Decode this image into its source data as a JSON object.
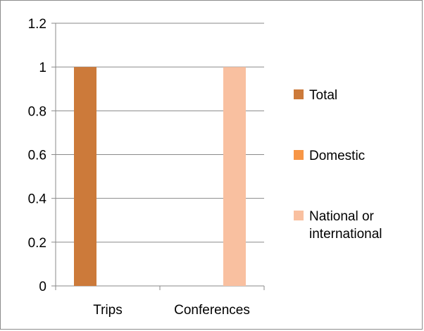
{
  "chart_data": {
    "type": "bar",
    "categories": [
      "Trips",
      "Conferences"
    ],
    "series": [
      {
        "name": "Total",
        "values": [
          1,
          0
        ],
        "color": "#cc7a3a"
      },
      {
        "name": "Domestic",
        "values": [
          0,
          0
        ],
        "color": "#f79646"
      },
      {
        "name": "National or international",
        "values": [
          0,
          1
        ],
        "color": "#f9c0a0"
      }
    ],
    "ylim": [
      0,
      1.2
    ],
    "yticks": [
      0,
      0.2,
      0.4,
      0.6,
      0.8,
      1,
      1.2
    ],
    "ytick_labels": [
      "0",
      "0.2",
      "0.4",
      "0.6",
      "0.8",
      "1",
      "1.2"
    ],
    "grid": true,
    "legend_position": "right",
    "legend_lines": [
      [
        "Total"
      ],
      [
        "Domestic"
      ],
      [
        "National or",
        "international"
      ]
    ],
    "title": "",
    "xlabel": "",
    "ylabel": ""
  }
}
